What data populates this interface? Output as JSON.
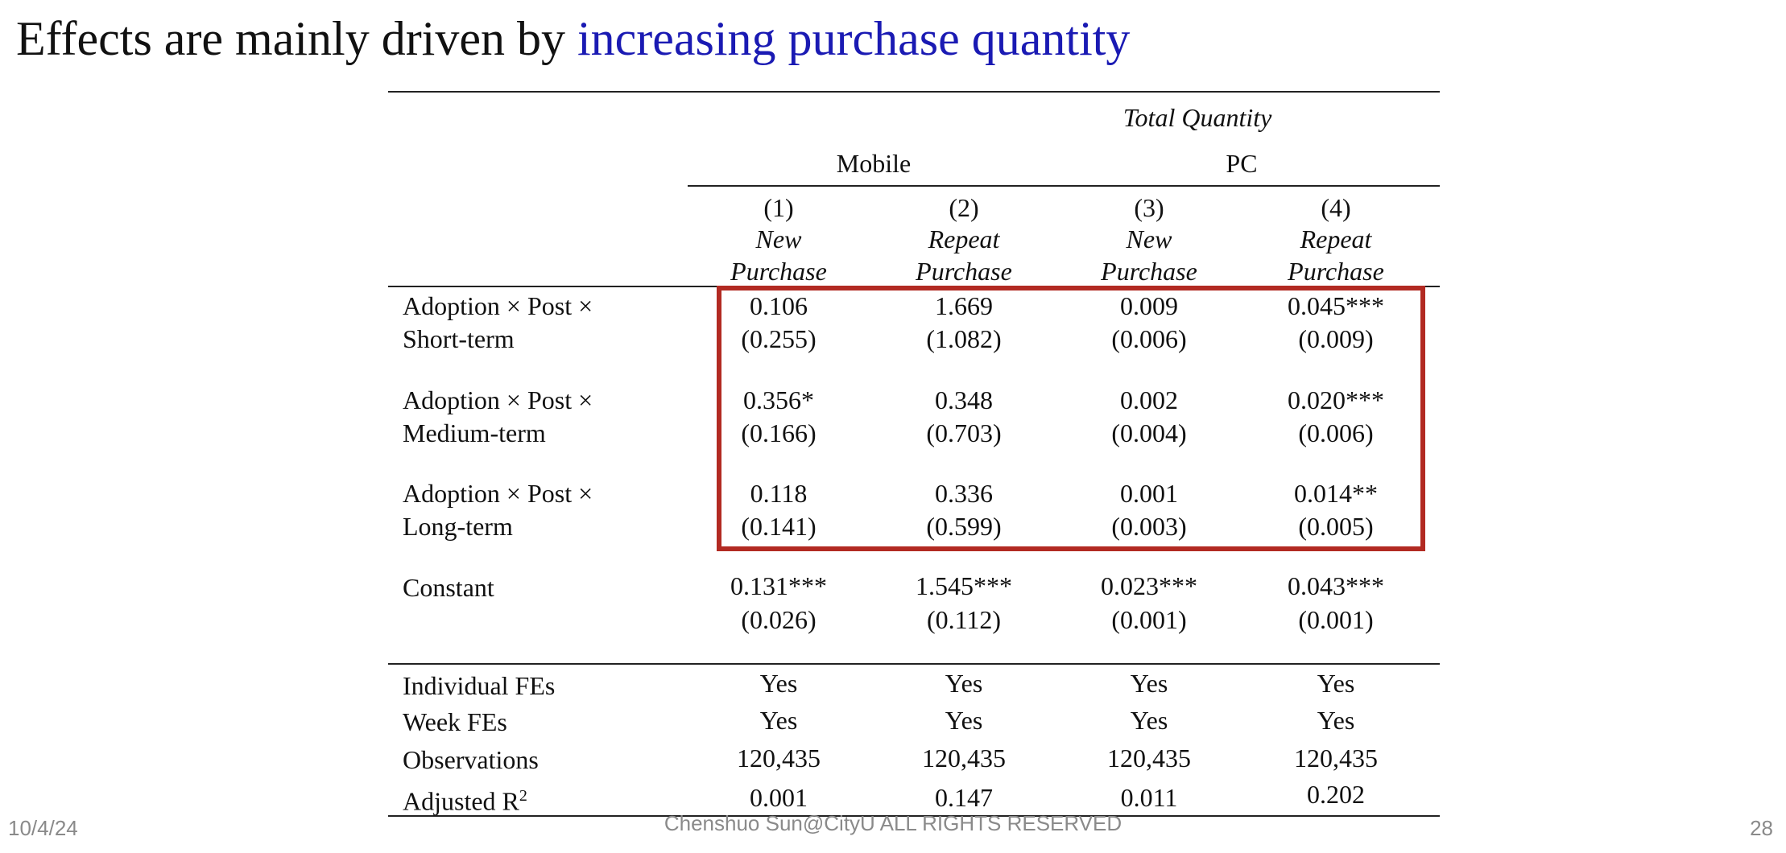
{
  "slide": {
    "title_prefix": "Effects are mainly driven by ",
    "title_highlight": "increasing purchase quantity",
    "footer_date": "10/4/24",
    "footer_copyright": "Chenshuo Sun@CityU ALL RIGHTS RESERVED",
    "page_number": "28",
    "colors": {
      "highlight_text": "#1a1ab3",
      "box_border": "#b22a22"
    }
  },
  "table": {
    "supertitle": "Total Quantity",
    "groups": [
      "Mobile",
      "PC"
    ],
    "columns": [
      {
        "number": "(1)",
        "line1": "New",
        "line2": "Purchase"
      },
      {
        "number": "(2)",
        "line1": "Repeat",
        "line2": "Purchase"
      },
      {
        "number": "(3)",
        "line1": "New",
        "line2": "Purchase"
      },
      {
        "number": "(4)",
        "line1": "Repeat",
        "line2": "Purchase"
      }
    ],
    "rows": [
      {
        "label1": "Adoption × Post ×",
        "label2": "Short-term",
        "coef": [
          "0.106",
          "1.669",
          "0.009",
          "0.045***"
        ],
        "se": [
          "(0.255)",
          "(1.082)",
          "(0.006)",
          "(0.009)"
        ]
      },
      {
        "label1": "Adoption × Post ×",
        "label2": "Medium-term",
        "coef": [
          "0.356*",
          "0.348",
          "0.002",
          "0.020***"
        ],
        "se": [
          "(0.166)",
          "(0.703)",
          "(0.004)",
          "(0.006)"
        ]
      },
      {
        "label1": "Adoption × Post ×",
        "label2": "Long-term",
        "coef": [
          "0.118",
          "0.336",
          "0.001",
          "0.014**"
        ],
        "se": [
          "(0.141)",
          "(0.599)",
          "(0.003)",
          "(0.005)"
        ]
      },
      {
        "label1": "Constant",
        "label2": "",
        "coef": [
          "0.131***",
          "1.545***",
          "0.023***",
          "0.043***"
        ],
        "se": [
          "(0.026)",
          "(0.112)",
          "(0.001)",
          "(0.001)"
        ]
      }
    ],
    "stats": [
      {
        "label": "Individual FEs",
        "values": [
          "Yes",
          "Yes",
          "Yes",
          "Yes"
        ]
      },
      {
        "label": "Week FEs",
        "values": [
          "Yes",
          "Yes",
          "Yes",
          "Yes"
        ]
      },
      {
        "label": "Observations",
        "values": [
          "120,435",
          "120,435",
          "120,435",
          "120,435"
        ]
      },
      {
        "label": "Adjusted R",
        "label_sup": "2",
        "values": [
          "0.001",
          "0.147",
          "0.011",
          "0.202"
        ]
      }
    ]
  }
}
